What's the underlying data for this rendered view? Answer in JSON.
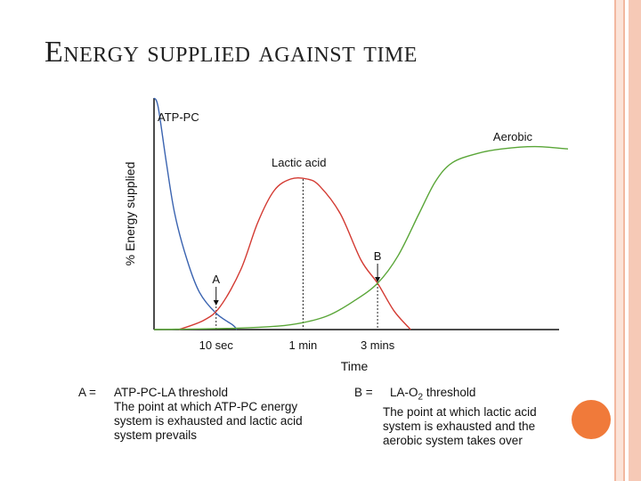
{
  "slide": {
    "title": "Energy supplied against time",
    "accent_color": "#f07a3a",
    "stripe_color": "#f2b8a0"
  },
  "chart_data": {
    "type": "line",
    "title": "",
    "xlabel": "Time",
    "ylabel": "% Energy supplied",
    "xlim": [
      0,
      100
    ],
    "ylim": [
      0,
      100
    ],
    "grid": false,
    "x_ticks": [
      {
        "label": "10 sec",
        "x": 15
      },
      {
        "label": "1 min",
        "x": 36
      },
      {
        "label": "3 mins",
        "x": 54
      }
    ],
    "series": [
      {
        "name": "ATP-PC",
        "color": "#3a63b0",
        "x": [
          0,
          1,
          3,
          5,
          8,
          11,
          15,
          19,
          20
        ],
        "y": [
          100,
          96,
          72,
          50,
          30,
          16,
          7,
          2,
          0
        ]
      },
      {
        "name": "Lactic acid",
        "color": "#d33a32",
        "x": [
          6,
          12,
          16,
          21,
          25,
          29,
          33,
          37,
          40,
          45,
          50,
          54,
          58,
          62
        ],
        "y": [
          0,
          4,
          10,
          26,
          46,
          60,
          65,
          65,
          62,
          50,
          30,
          20,
          8,
          0
        ]
      },
      {
        "name": "Aerobic",
        "color": "#5aa638",
        "x": [
          0,
          20,
          30,
          36,
          42,
          48,
          54,
          59,
          64,
          68,
          72,
          78,
          84,
          92,
          100
        ],
        "y": [
          0,
          0.6,
          1.5,
          3,
          6,
          12,
          20,
          32,
          50,
          64,
          72,
          76,
          78,
          79,
          78
        ]
      }
    ],
    "annotations": [
      {
        "label": "A",
        "x": 15,
        "y": 10
      },
      {
        "label": "B",
        "x": 54,
        "y": 20
      }
    ],
    "dashed_markers": [
      {
        "x": 15,
        "y": 10
      },
      {
        "x": 36,
        "y": 65
      },
      {
        "x": 54,
        "y": 20
      }
    ]
  },
  "legend": {
    "a": {
      "key": "A  =",
      "title": "ATP-PC-LA threshold",
      "lines": [
        "The point at which ATP-PC energy",
        "system is exhausted and lactic acid",
        "system prevails"
      ]
    },
    "b": {
      "key": "B  =",
      "title_prefix": "LA-O",
      "title_sub": "2",
      "title_suffix": " threshold",
      "lines": [
        "The point at which lactic acid",
        "system is exhausted and the",
        "aerobic system takes over"
      ]
    }
  }
}
